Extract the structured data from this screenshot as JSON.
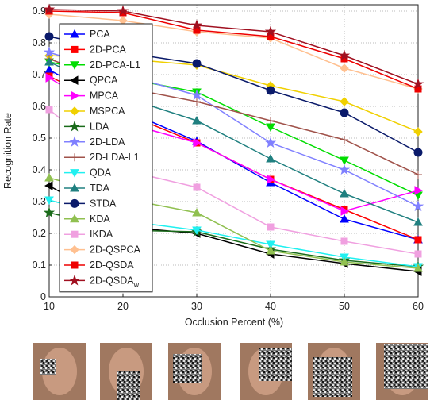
{
  "chart_data": {
    "type": "line",
    "y_label": "Recognition Rate",
    "x_label": "Occlusion Percent (%)",
    "x": [
      10,
      20,
      30,
      40,
      50,
      60
    ],
    "xlim": [
      10,
      60
    ],
    "xticks": [
      10,
      20,
      30,
      40,
      50,
      60
    ],
    "ylim": [
      0,
      0.92
    ],
    "yticks": [
      0,
      0.1,
      0.2,
      0.3,
      0.4,
      0.5,
      0.6,
      0.7,
      0.8,
      0.9
    ],
    "grid": true,
    "legend": "upper left",
    "series": [
      {
        "name": "PCA",
        "color": "#0000ff",
        "marker": "triangle-up",
        "values": [
          0.715,
          0.59,
          0.49,
          0.36,
          0.245,
          0.18
        ]
      },
      {
        "name": "2D-PCA",
        "color": "#ff0000",
        "marker": "square",
        "values": [
          0.695,
          0.58,
          0.485,
          0.37,
          0.275,
          0.18
        ]
      },
      {
        "name": "2D-PCA-L1",
        "color": "#00dd00",
        "marker": "triangle-down",
        "values": [
          0.74,
          0.69,
          0.645,
          0.535,
          0.43,
          0.32
        ]
      },
      {
        "name": "QPCA",
        "color": "#000000",
        "marker": "triangle-left",
        "values": [
          0.35,
          0.22,
          0.2,
          0.135,
          0.105,
          0.08
        ]
      },
      {
        "name": "MPCA",
        "color": "#ff00ff",
        "marker": "triangle-right",
        "values": [
          0.69,
          0.55,
          0.485,
          0.37,
          0.27,
          0.335
        ]
      },
      {
        "name": "MSPCA",
        "color": "#f0d000",
        "marker": "diamond",
        "values": [
          0.76,
          0.75,
          0.73,
          0.665,
          0.615,
          0.52
        ]
      },
      {
        "name": "LDA",
        "color": "#1a6b1a",
        "marker": "star",
        "values": [
          0.265,
          0.21,
          0.205,
          0.15,
          0.115,
          0.095
        ]
      },
      {
        "name": "2D-LDA",
        "color": "#8080ff",
        "marker": "star",
        "values": [
          0.77,
          0.7,
          0.635,
          0.485,
          0.4,
          0.285
        ]
      },
      {
        "name": "2D-LDA-L1",
        "color": "#a0524a",
        "marker": "plus",
        "values": [
          0.75,
          0.66,
          0.615,
          0.555,
          0.495,
          0.385
        ]
      },
      {
        "name": "QDA",
        "color": "#20f0f0",
        "marker": "triangle-down",
        "values": [
          0.305,
          0.24,
          0.21,
          0.165,
          0.125,
          0.095
        ]
      },
      {
        "name": "TDA",
        "color": "#208080",
        "marker": "triangle-up",
        "values": [
          0.74,
          0.63,
          0.555,
          0.435,
          0.325,
          0.235
        ]
      },
      {
        "name": "STDA",
        "color": "#0a1a6a",
        "marker": "circle",
        "values": [
          0.82,
          0.77,
          0.735,
          0.65,
          0.58,
          0.455
        ]
      },
      {
        "name": "KDA",
        "color": "#90c050",
        "marker": "triangle-up",
        "values": [
          0.375,
          0.31,
          0.265,
          0.145,
          0.11,
          0.09
        ]
      },
      {
        "name": "IKDA",
        "color": "#f0a0e0",
        "marker": "square",
        "values": [
          0.59,
          0.4,
          0.345,
          0.22,
          0.175,
          0.135
        ]
      },
      {
        "name": "2D-QSPCA",
        "color": "#ffc090",
        "marker": "diamond",
        "values": [
          0.89,
          0.87,
          0.835,
          0.815,
          0.72,
          0.655
        ]
      },
      {
        "name": "2D-QSDA",
        "color": "#ee0000",
        "marker": "square",
        "values": [
          0.9,
          0.895,
          0.84,
          0.82,
          0.75,
          0.655
        ]
      },
      {
        "name": "2D-QSDA",
        "subscript": "w",
        "color": "#a01020",
        "marker": "star",
        "values": [
          0.905,
          0.9,
          0.855,
          0.835,
          0.76,
          0.67
        ]
      }
    ]
  }
}
